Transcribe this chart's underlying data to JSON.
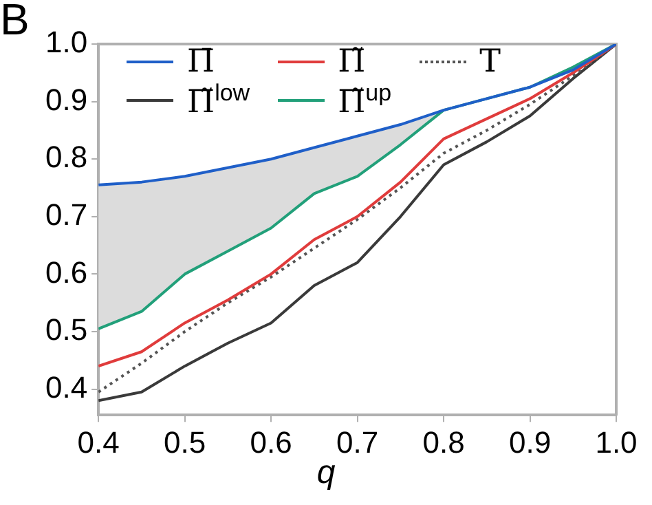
{
  "chart_data": {
    "type": "line",
    "title": "B",
    "xlabel": "q",
    "x": [
      0.4,
      0.45,
      0.5,
      0.55,
      0.6,
      0.65,
      0.7,
      0.75,
      0.8,
      0.85,
      0.9,
      0.95,
      1.0
    ],
    "series": [
      {
        "name": "Π̄",
        "color": "#1f5fc8",
        "values": [
          0.755,
          0.76,
          0.77,
          0.785,
          0.8,
          0.82,
          0.84,
          0.86,
          0.885,
          0.905,
          0.925,
          0.955,
          1.0
        ],
        "lower": [
          0.505,
          0.535,
          0.6,
          0.64,
          0.68,
          0.74,
          0.77,
          0.825,
          0.885,
          0.905,
          0.925,
          0.96,
          1.0
        ],
        "upper": [
          0.755,
          0.76,
          0.77,
          0.785,
          0.8,
          0.82,
          0.84,
          0.86,
          0.885,
          0.905,
          0.925,
          0.955,
          1.0
        ]
      },
      {
        "name": "Π̃",
        "color": "#e03c3c",
        "values": [
          0.44,
          0.465,
          0.515,
          0.555,
          0.6,
          0.66,
          0.7,
          0.76,
          0.835,
          0.87,
          0.905,
          0.95,
          1.0
        ]
      },
      {
        "name": "T",
        "color": "#555555",
        "line_style": "dotted",
        "values": [
          0.395,
          0.445,
          0.5,
          0.55,
          0.595,
          0.645,
          0.695,
          0.75,
          0.81,
          0.85,
          0.895,
          0.945,
          1.0
        ]
      },
      {
        "name": "Π̃$^{low}$",
        "color": "#3a3a3a",
        "values": [
          0.38,
          0.395,
          0.44,
          0.48,
          0.515,
          0.58,
          0.62,
          0.7,
          0.79,
          0.83,
          0.875,
          0.94,
          1.0
        ]
      },
      {
        "name": "Π̃$^{up}$",
        "color": "#22a07a",
        "values": [
          0.505,
          0.535,
          0.6,
          0.64,
          0.68,
          0.74,
          0.77,
          0.825,
          0.885,
          0.905,
          0.925,
          0.96,
          1.0
        ]
      }
    ],
    "xlim": [
      0.4,
      1.0
    ],
    "xticks": [
      0.4,
      0.5,
      0.6,
      0.7,
      0.8,
      0.9,
      {
        "value": 1,
        "label": "1.0"
      }
    ],
    "ylim": [
      0.355,
      1.0
    ],
    "yticks": [
      0.4,
      0.5,
      0.6,
      0.7,
      0.8,
      0.9,
      {
        "value": 1,
        "label": "1.0"
      }
    ],
    "grid": false,
    "legend": "top left",
    "line_style": "solid",
    "marker": "none"
  }
}
